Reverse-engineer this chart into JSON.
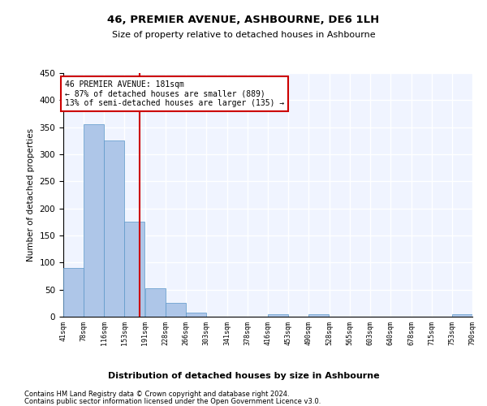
{
  "title": "46, PREMIER AVENUE, ASHBOURNE, DE6 1LH",
  "subtitle": "Size of property relative to detached houses in Ashbourne",
  "xlabel": "Distribution of detached houses by size in Ashbourne",
  "ylabel": "Number of detached properties",
  "bar_color": "#aec6e8",
  "bar_edge_color": "#5a96c8",
  "background_color": "#f0f4ff",
  "grid_color": "#ffffff",
  "bin_edges": [
    41,
    78,
    116,
    153,
    191,
    228,
    266,
    303,
    341,
    378,
    416,
    453,
    490,
    528,
    565,
    603,
    640,
    678,
    715,
    753,
    790
  ],
  "bar_heights": [
    90,
    355,
    325,
    175,
    52,
    25,
    8,
    0,
    0,
    0,
    5,
    0,
    4,
    0,
    0,
    0,
    0,
    0,
    0,
    4
  ],
  "tick_labels": [
    "41sqm",
    "78sqm",
    "116sqm",
    "153sqm",
    "191sqm",
    "228sqm",
    "266sqm",
    "303sqm",
    "341sqm",
    "378sqm",
    "416sqm",
    "453sqm",
    "490sqm",
    "528sqm",
    "565sqm",
    "603sqm",
    "640sqm",
    "678sqm",
    "715sqm",
    "753sqm",
    "790sqm"
  ],
  "property_size": 181,
  "property_label": "46 PREMIER AVENUE: 181sqm",
  "annotation_line1": "← 87% of detached houses are smaller (889)",
  "annotation_line2": "13% of semi-detached houses are larger (135) →",
  "vline_color": "#cc0000",
  "annotation_box_edge_color": "#cc0000",
  "ylim": [
    0,
    450
  ],
  "yticks": [
    0,
    50,
    100,
    150,
    200,
    250,
    300,
    350,
    400,
    450
  ],
  "footer_line1": "Contains HM Land Registry data © Crown copyright and database right 2024.",
  "footer_line2": "Contains public sector information licensed under the Open Government Licence v3.0."
}
